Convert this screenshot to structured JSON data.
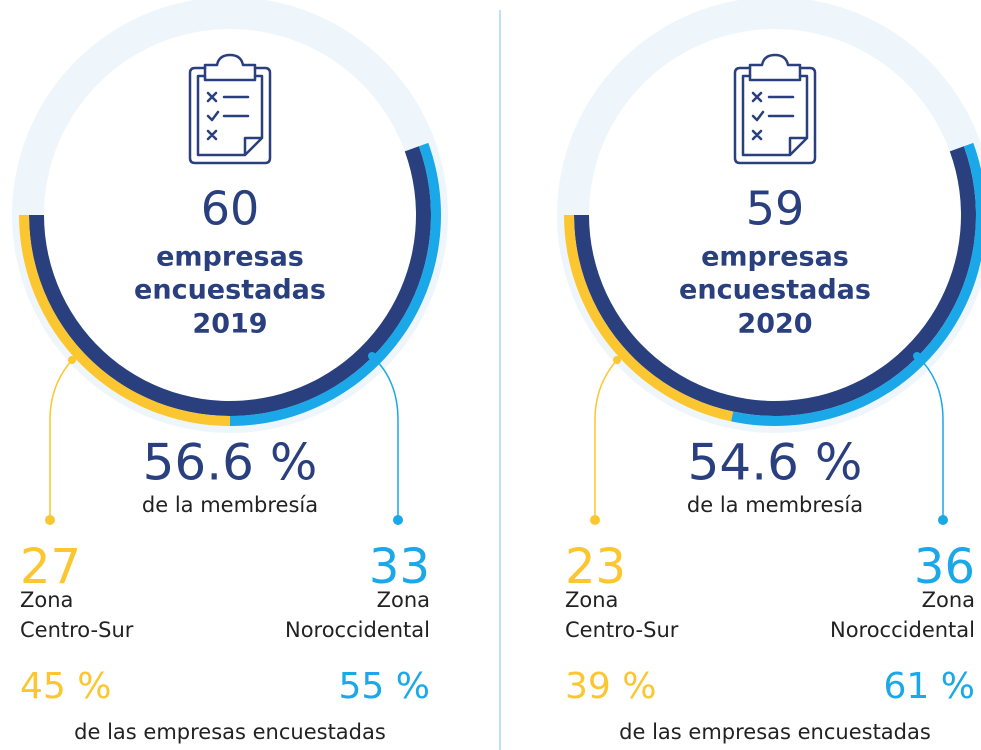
{
  "panels": [
    {
      "count": "60",
      "label_lines": [
        "empresas",
        "encuestadas"
      ],
      "year": "2019",
      "membership": "56.6 %",
      "membership_label": "de la membresía",
      "zones": [
        {
          "count": "27",
          "name": [
            "Zona",
            "Centro-Sur"
          ],
          "share": 45,
          "share_label": "45 %",
          "color": "#fbc62f"
        },
        {
          "count": "33",
          "name": [
            "Zona",
            "Noroccidental"
          ],
          "share": 55,
          "share_label": "55 %",
          "color": "#1aa8e8"
        }
      ],
      "footer": "de las empresas encuestadas"
    },
    {
      "count": "59",
      "label_lines": [
        "empresas",
        "encuestadas"
      ],
      "year": "2020",
      "membership": "54.6 %",
      "membership_label": "de la membresía",
      "zones": [
        {
          "count": "23",
          "name": [
            "Zona",
            "Centro-Sur"
          ],
          "share": 39,
          "share_label": "39 %",
          "color": "#fbc62f"
        },
        {
          "count": "36",
          "name": [
            "Zona",
            "Noroccidental"
          ],
          "share": 61,
          "share_label": "61 %",
          "color": "#1aa8e8"
        }
      ],
      "footer": "de las empresas encuestadas"
    }
  ]
}
